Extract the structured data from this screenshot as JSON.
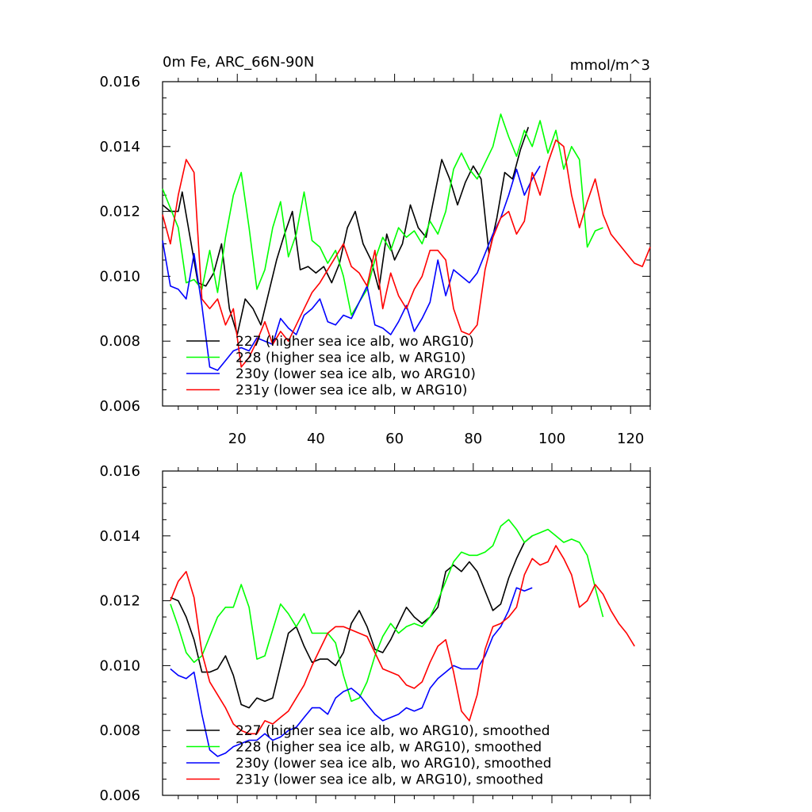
{
  "chart_data": [
    {
      "type": "line",
      "title": "0m Fe, ARC_66N-90N",
      "units": "mmol/m^3",
      "xlim": [
        1,
        125
      ],
      "ylim": [
        0.006,
        0.016
      ],
      "y_ticks": [
        "0.006",
        "0.008",
        "0.010",
        "0.012",
        "0.014",
        "0.016"
      ],
      "x_ticks": [
        "20",
        "40",
        "60",
        "80",
        "100",
        "120"
      ],
      "legend": [
        "227 (higher sea ice alb, wo ARG10)",
        "228 (higher sea ice alb, w ARG10)",
        "230y (lower sea ice alb, wo ARG10)",
        "231y (lower sea ice alb, w ARG10)"
      ],
      "colors": [
        "#000000",
        "#00ff00",
        "#0000ff",
        "#ff0000"
      ],
      "series": [
        {
          "name": "227",
          "x": [
            1,
            3,
            5,
            6,
            8,
            10,
            12,
            14,
            16,
            18,
            20,
            22,
            24,
            26,
            28,
            30,
            32,
            34,
            36,
            38,
            40,
            42,
            44,
            46,
            48,
            50,
            52,
            54,
            56,
            58,
            60,
            62,
            64,
            66,
            68,
            70,
            72,
            74,
            76,
            78,
            80,
            82,
            84,
            86,
            88,
            90,
            92,
            94
          ],
          "values": [
            0.0122,
            0.012,
            0.012,
            0.0126,
            0.0112,
            0.0098,
            0.0097,
            0.0101,
            0.011,
            0.009,
            0.0082,
            0.0093,
            0.009,
            0.0085,
            0.0095,
            0.0105,
            0.0113,
            0.012,
            0.0102,
            0.0103,
            0.0101,
            0.0103,
            0.0098,
            0.0104,
            0.0115,
            0.012,
            0.011,
            0.0105,
            0.0096,
            0.0113,
            0.0105,
            0.011,
            0.0122,
            0.0115,
            0.0112,
            0.0124,
            0.0136,
            0.013,
            0.0122,
            0.0129,
            0.0134,
            0.013,
            0.0107,
            0.0118,
            0.0132,
            0.013,
            0.0139,
            0.0146
          ]
        },
        {
          "name": "228",
          "x": [
            1,
            3,
            5,
            7,
            9,
            11,
            13,
            15,
            17,
            19,
            21,
            23,
            25,
            27,
            29,
            31,
            33,
            35,
            37,
            39,
            41,
            43,
            45,
            47,
            49,
            51,
            53,
            55,
            57,
            59,
            61,
            63,
            65,
            67,
            69,
            71,
            73,
            75,
            77,
            79,
            81,
            83,
            85,
            87,
            89,
            91,
            93,
            95,
            97,
            99,
            101,
            103,
            105,
            107,
            109,
            111,
            113
          ],
          "values": [
            0.0127,
            0.0121,
            0.0115,
            0.0098,
            0.0099,
            0.0096,
            0.0108,
            0.0095,
            0.0112,
            0.0125,
            0.0132,
            0.0115,
            0.0096,
            0.0102,
            0.0115,
            0.0123,
            0.0106,
            0.0113,
            0.0126,
            0.0111,
            0.0109,
            0.0104,
            0.0108,
            0.01,
            0.0088,
            0.0092,
            0.0096,
            0.0105,
            0.0112,
            0.0108,
            0.0115,
            0.0112,
            0.0114,
            0.011,
            0.0117,
            0.0113,
            0.012,
            0.0133,
            0.0138,
            0.0133,
            0.013,
            0.0135,
            0.014,
            0.015,
            0.0143,
            0.0137,
            0.0145,
            0.014,
            0.0148,
            0.0138,
            0.0145,
            0.0133,
            0.014,
            0.0136,
            0.0109,
            0.0114,
            0.0115
          ]
        },
        {
          "name": "230y",
          "x": [
            1,
            3,
            5,
            7,
            9,
            11,
            13,
            15,
            17,
            19,
            21,
            23,
            25,
            27,
            29,
            31,
            33,
            35,
            37,
            39,
            41,
            43,
            45,
            47,
            49,
            51,
            53,
            55,
            57,
            59,
            61,
            63,
            65,
            67,
            69,
            71,
            73,
            75,
            77,
            79,
            81,
            83,
            85,
            87,
            89,
            91,
            93,
            95,
            97
          ],
          "values": [
            0.0111,
            0.0097,
            0.0096,
            0.0093,
            0.0107,
            0.0091,
            0.0072,
            0.0071,
            0.0074,
            0.0077,
            0.0078,
            0.0077,
            0.0081,
            0.008,
            0.0079,
            0.0087,
            0.0084,
            0.0082,
            0.0088,
            0.009,
            0.0093,
            0.0086,
            0.0085,
            0.0088,
            0.0087,
            0.0092,
            0.0097,
            0.0085,
            0.0084,
            0.0082,
            0.0086,
            0.0091,
            0.0083,
            0.0087,
            0.0092,
            0.0105,
            0.0094,
            0.0102,
            0.01,
            0.0098,
            0.0101,
            0.0107,
            0.0113,
            0.0118,
            0.0125,
            0.0133,
            0.0125,
            0.013,
            0.0134
          ]
        },
        {
          "name": "231y",
          "x": [
            1,
            3,
            5,
            7,
            9,
            11,
            13,
            15,
            17,
            19,
            21,
            23,
            25,
            27,
            29,
            31,
            33,
            35,
            37,
            39,
            41,
            43,
            45,
            47,
            49,
            51,
            53,
            55,
            57,
            59,
            61,
            63,
            65,
            67,
            69,
            71,
            73,
            75,
            77,
            79,
            81,
            83,
            85,
            87,
            89,
            91,
            93,
            95,
            97,
            99,
            101,
            103,
            105,
            107,
            109,
            111,
            113,
            115,
            117,
            119,
            121,
            123,
            125
          ],
          "values": [
            0.0119,
            0.011,
            0.0125,
            0.0136,
            0.0132,
            0.0093,
            0.009,
            0.0093,
            0.0085,
            0.009,
            0.0072,
            0.0075,
            0.008,
            0.0086,
            0.0079,
            0.0083,
            0.008,
            0.0085,
            0.009,
            0.0095,
            0.0098,
            0.0102,
            0.0106,
            0.011,
            0.0103,
            0.0101,
            0.0097,
            0.0108,
            0.009,
            0.0101,
            0.0094,
            0.009,
            0.0096,
            0.01,
            0.0108,
            0.0108,
            0.0105,
            0.009,
            0.0083,
            0.0082,
            0.0085,
            0.0102,
            0.0112,
            0.0118,
            0.012,
            0.0113,
            0.0117,
            0.0132,
            0.0125,
            0.0135,
            0.0142,
            0.014,
            0.0125,
            0.0115,
            0.0123,
            0.013,
            0.0119,
            0.0113,
            0.011,
            0.0107,
            0.0104,
            0.0103,
            0.0109
          ]
        }
      ]
    },
    {
      "type": "line",
      "title": "",
      "units": "",
      "xlim": [
        1,
        125
      ],
      "ylim": [
        0.006,
        0.016
      ],
      "y_ticks": [
        "0.006",
        "0.008",
        "0.010",
        "0.012",
        "0.014",
        "0.016"
      ],
      "x_ticks": [],
      "legend": [
        "227 (higher sea ice alb, wo ARG10), smoothed",
        "228 (higher sea ice alb, w ARG10), smoothed",
        "230y (lower sea ice alb, wo ARG10), smoothed",
        "231y (lower sea ice alb, w ARG10), smoothed"
      ],
      "colors": [
        "#000000",
        "#00ff00",
        "#0000ff",
        "#ff0000"
      ],
      "series": [
        {
          "name": "227",
          "x": [
            3,
            5,
            7,
            9,
            11,
            13,
            15,
            17,
            19,
            21,
            23,
            25,
            27,
            29,
            31,
            33,
            35,
            37,
            39,
            41,
            43,
            45,
            47,
            49,
            51,
            53,
            55,
            57,
            59,
            61,
            63,
            65,
            67,
            69,
            71,
            73,
            75,
            77,
            79,
            81,
            83,
            85,
            87,
            89,
            91,
            93,
            95
          ],
          "values": [
            0.0121,
            0.012,
            0.0115,
            0.0108,
            0.0098,
            0.0098,
            0.0099,
            0.0103,
            0.0097,
            0.0088,
            0.0087,
            0.009,
            0.0089,
            0.009,
            0.01,
            0.011,
            0.0112,
            0.0106,
            0.0101,
            0.0102,
            0.0102,
            0.01,
            0.0104,
            0.0113,
            0.0117,
            0.0112,
            0.0105,
            0.0104,
            0.0108,
            0.0113,
            0.0118,
            0.0115,
            0.0113,
            0.0115,
            0.0118,
            0.0129,
            0.0131,
            0.0129,
            0.0132,
            0.0129,
            0.0123,
            0.0117,
            0.0119,
            0.0127,
            0.0133,
            0.0138,
            0.014
          ]
        },
        {
          "name": "228",
          "x": [
            3,
            5,
            7,
            9,
            11,
            13,
            15,
            17,
            19,
            21,
            23,
            25,
            27,
            29,
            31,
            33,
            35,
            37,
            39,
            41,
            43,
            45,
            47,
            49,
            51,
            53,
            55,
            57,
            59,
            61,
            63,
            65,
            67,
            69,
            71,
            73,
            75,
            77,
            79,
            81,
            83,
            85,
            87,
            89,
            91,
            93,
            95,
            97,
            99,
            101,
            103,
            105,
            107,
            109,
            111,
            113
          ],
          "values": [
            0.0119,
            0.0112,
            0.0104,
            0.0101,
            0.0103,
            0.0109,
            0.0115,
            0.0118,
            0.0118,
            0.0125,
            0.0118,
            0.0102,
            0.0103,
            0.0111,
            0.0119,
            0.0116,
            0.0112,
            0.0116,
            0.011,
            0.011,
            0.011,
            0.0107,
            0.0097,
            0.0089,
            0.009,
            0.0095,
            0.0103,
            0.0109,
            0.0113,
            0.011,
            0.0112,
            0.0113,
            0.0112,
            0.0115,
            0.012,
            0.0126,
            0.0132,
            0.0135,
            0.0134,
            0.0134,
            0.0135,
            0.0137,
            0.0143,
            0.0145,
            0.0142,
            0.0138,
            0.014,
            0.0141,
            0.0142,
            0.014,
            0.0138,
            0.0139,
            0.0138,
            0.0134,
            0.0124,
            0.0115
          ]
        },
        {
          "name": "230y",
          "x": [
            3,
            5,
            7,
            9,
            11,
            13,
            15,
            17,
            19,
            21,
            23,
            25,
            27,
            29,
            31,
            33,
            35,
            37,
            39,
            41,
            43,
            45,
            47,
            49,
            51,
            53,
            55,
            57,
            59,
            61,
            63,
            65,
            67,
            69,
            71,
            73,
            75,
            77,
            79,
            81,
            83,
            85,
            87,
            89,
            91,
            93,
            95
          ],
          "values": [
            0.0099,
            0.0097,
            0.0096,
            0.0098,
            0.0085,
            0.0074,
            0.0072,
            0.0073,
            0.0075,
            0.0076,
            0.0077,
            0.0077,
            0.0079,
            0.0077,
            0.0078,
            0.008,
            0.0081,
            0.0084,
            0.0087,
            0.0087,
            0.0085,
            0.009,
            0.0092,
            0.0093,
            0.0091,
            0.0088,
            0.0085,
            0.0083,
            0.0084,
            0.0085,
            0.0087,
            0.0086,
            0.0087,
            0.0093,
            0.0096,
            0.0098,
            0.01,
            0.0099,
            0.0099,
            0.0099,
            0.0103,
            0.0109,
            0.0112,
            0.0117,
            0.0124,
            0.0123,
            0.0124
          ]
        },
        {
          "name": "231y",
          "x": [
            3,
            5,
            7,
            9,
            11,
            13,
            15,
            17,
            19,
            21,
            23,
            25,
            27,
            29,
            31,
            33,
            35,
            37,
            39,
            41,
            43,
            45,
            47,
            49,
            51,
            53,
            55,
            57,
            59,
            61,
            63,
            65,
            67,
            69,
            71,
            73,
            75,
            77,
            79,
            81,
            83,
            85,
            87,
            89,
            91,
            93,
            95,
            97,
            99,
            101,
            103,
            105,
            107,
            109,
            111,
            113,
            115,
            117,
            119,
            121
          ],
          "values": [
            0.012,
            0.0126,
            0.0129,
            0.0121,
            0.0104,
            0.0095,
            0.0091,
            0.0087,
            0.0082,
            0.008,
            0.0079,
            0.0079,
            0.0083,
            0.0082,
            0.0084,
            0.0086,
            0.009,
            0.0094,
            0.01,
            0.0105,
            0.011,
            0.0112,
            0.0112,
            0.0111,
            0.011,
            0.0109,
            0.0104,
            0.0099,
            0.0098,
            0.0097,
            0.0094,
            0.0093,
            0.0095,
            0.0101,
            0.0106,
            0.0108,
            0.0098,
            0.0086,
            0.0083,
            0.0091,
            0.0105,
            0.0112,
            0.0113,
            0.0115,
            0.0118,
            0.0128,
            0.0133,
            0.0131,
            0.0132,
            0.0137,
            0.0133,
            0.0128,
            0.0118,
            0.012,
            0.0125,
            0.0122,
            0.0117,
            0.0113,
            0.011,
            0.0106
          ]
        }
      ]
    }
  ]
}
